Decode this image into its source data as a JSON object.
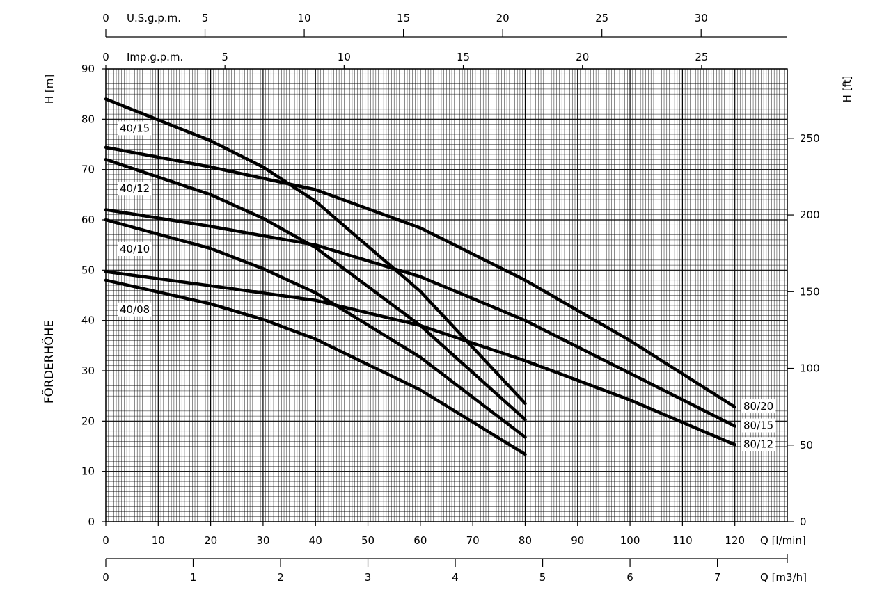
{
  "chart_data": {
    "type": "line",
    "xlabel": "Q [l/min]",
    "ylabel": "H [m]",
    "ylabel_side": "FÖRDERHÖHE",
    "y2label": "H [ft]",
    "x2label": "Q [m3/h]",
    "top_axis_1_label": "U.S.g.p.m.",
    "top_axis_2_label": "Imp.g.p.m.",
    "xlim": [
      0,
      130
    ],
    "ylim": [
      0,
      90
    ],
    "grid": true,
    "x_ticks": [
      0,
      10,
      20,
      30,
      40,
      50,
      60,
      70,
      80,
      90,
      100,
      110,
      120
    ],
    "y_ticks": [
      0,
      10,
      20,
      30,
      40,
      50,
      60,
      70,
      80,
      90
    ],
    "y2_ticks": [
      0,
      50,
      100,
      150,
      200,
      250
    ],
    "m3h_ticks": [
      0,
      1,
      2,
      3,
      4,
      5,
      6,
      7
    ],
    "usgpm_ticks": [
      0,
      5,
      10,
      15,
      20,
      25,
      30
    ],
    "impgpm_ticks": [
      0,
      5,
      10,
      15,
      20,
      25
    ],
    "series": [
      {
        "name": "40/15",
        "x": [
          0,
          20,
          30,
          40,
          60,
          80
        ],
        "y": [
          84,
          75.7,
          70.5,
          63.7,
          45.8,
          23.5
        ]
      },
      {
        "name": "40/12",
        "x": [
          0,
          20,
          30,
          40,
          60,
          80
        ],
        "y": [
          72,
          65,
          60.3,
          54.5,
          39,
          20.3
        ]
      },
      {
        "name": "40/10",
        "x": [
          0,
          20,
          30,
          40,
          60,
          80
        ],
        "y": [
          60,
          54.3,
          50.3,
          45.5,
          32.7,
          16.8
        ]
      },
      {
        "name": "40/08",
        "x": [
          0,
          20,
          30,
          40,
          60,
          80
        ],
        "y": [
          48,
          43.3,
          40.2,
          36.3,
          26.2,
          13.4
        ]
      },
      {
        "name": "80/20",
        "x": [
          0,
          20,
          40,
          60,
          80,
          100,
          120
        ],
        "y": [
          74.4,
          70.5,
          66,
          58.4,
          48,
          36,
          22.8
        ]
      },
      {
        "name": "80/15",
        "x": [
          0,
          20,
          40,
          60,
          80,
          100,
          120
        ],
        "y": [
          62,
          58.7,
          55,
          48.7,
          40,
          29.5,
          19
        ]
      },
      {
        "name": "80/12",
        "x": [
          0,
          20,
          40,
          60,
          80,
          100,
          120
        ],
        "y": [
          49.7,
          46.9,
          44,
          39,
          32,
          24.2,
          15.3
        ]
      }
    ]
  }
}
